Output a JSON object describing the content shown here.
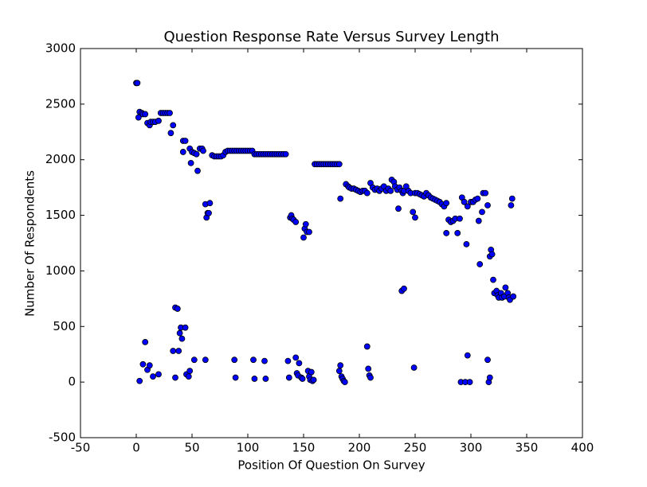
{
  "chart_data": {
    "type": "scatter",
    "title": "Question Response Rate Versus Survey Length",
    "x_label": "Position Of Question On Survey",
    "y_label": "Number Of Respondents",
    "color": "#0000ff",
    "xlim": [
      -50,
      400
    ],
    "xticks": [
      -50,
      0,
      50,
      100,
      150,
      200,
      250,
      300,
      350,
      400
    ],
    "ylim": [
      -500,
      3000
    ],
    "yticks": [
      -500,
      0,
      500,
      1000,
      1500,
      2000,
      2500,
      3000
    ],
    "x": [
      0,
      1,
      2,
      3,
      5,
      6,
      8,
      10,
      12,
      13,
      15,
      17,
      20,
      22,
      24,
      26,
      28,
      30,
      31,
      33,
      42,
      44,
      42,
      48,
      50,
      49,
      52,
      54,
      55,
      57,
      59,
      60,
      62,
      63,
      64,
      65,
      66,
      68,
      70,
      72,
      74,
      76,
      78,
      80,
      82,
      84,
      86,
      88,
      90,
      92,
      94,
      96,
      98,
      100,
      102,
      104,
      106,
      108,
      110,
      112,
      114,
      116,
      118,
      120,
      122,
      124,
      126,
      128,
      130,
      132,
      134,
      138,
      139,
      140,
      141,
      143,
      150,
      151,
      152,
      153,
      155,
      160,
      162,
      164,
      166,
      168,
      170,
      172,
      174,
      176,
      178,
      180,
      182,
      183,
      188,
      190,
      191,
      193,
      195,
      197,
      199,
      201,
      203,
      205,
      207,
      210,
      212,
      214,
      216,
      218,
      220,
      222,
      224,
      226,
      228,
      229,
      231,
      232,
      234,
      235,
      236,
      238,
      239,
      240,
      242,
      244,
      246,
      248,
      250,
      250,
      252,
      254,
      256,
      258,
      260,
      262,
      264,
      266,
      268,
      270,
      272,
      274,
      276,
      278,
      278,
      280,
      282,
      284,
      286,
      288,
      290,
      292,
      294,
      296,
      297,
      300,
      302,
      304,
      306,
      307,
      308,
      310,
      311,
      313,
      315,
      317,
      318,
      319,
      320,
      321,
      323,
      324,
      325,
      327,
      328,
      330,
      331,
      333,
      334,
      335,
      336,
      337,
      338,
      3,
      6,
      8,
      10,
      12,
      15,
      20,
      33,
      35,
      35,
      37,
      38,
      39,
      40,
      41,
      44,
      45,
      47,
      48,
      52,
      62,
      88,
      89,
      105,
      106,
      115,
      116,
      136,
      137,
      143,
      144,
      145,
      146,
      148,
      149,
      154,
      155,
      156,
      157,
      158,
      159,
      182,
      183,
      184,
      185,
      186,
      187,
      207,
      208,
      209,
      210,
      238,
      240,
      249,
      291,
      295,
      297,
      299,
      315,
      316,
      317
    ],
    "values": [
      2690,
      2690,
      2380,
      2430,
      2420,
      2410,
      2410,
      2330,
      2310,
      2340,
      2340,
      2340,
      2350,
      2420,
      2420,
      2420,
      2420,
      2420,
      2240,
      2310,
      2170,
      2170,
      2070,
      2100,
      2070,
      1970,
      2060,
      2050,
      1900,
      2100,
      2100,
      2080,
      1600,
      1480,
      1520,
      1520,
      1610,
      2040,
      2030,
      2030,
      2030,
      2030,
      2040,
      2070,
      2080,
      2080,
      2080,
      2080,
      2080,
      2080,
      2080,
      2080,
      2080,
      2080,
      2080,
      2080,
      2050,
      2050,
      2050,
      2050,
      2050,
      2050,
      2050,
      2050,
      2050,
      2050,
      2050,
      2050,
      2050,
      2050,
      2050,
      1480,
      1500,
      1470,
      1460,
      1440,
      1300,
      1380,
      1420,
      1350,
      1350,
      1960,
      1960,
      1960,
      1960,
      1960,
      1960,
      1960,
      1960,
      1960,
      1960,
      1960,
      1960,
      1650,
      1780,
      1760,
      1750,
      1740,
      1740,
      1730,
      1720,
      1710,
      1720,
      1720,
      1700,
      1790,
      1750,
      1730,
      1740,
      1720,
      1740,
      1760,
      1720,
      1740,
      1720,
      1820,
      1800,
      1760,
      1730,
      1560,
      1750,
      1720,
      1700,
      1720,
      1760,
      1720,
      1700,
      1530,
      1480,
      1700,
      1700,
      1690,
      1680,
      1670,
      1700,
      1680,
      1660,
      1650,
      1640,
      1630,
      1620,
      1600,
      1580,
      1340,
      1610,
      1460,
      1440,
      1450,
      1470,
      1340,
      1470,
      1660,
      1620,
      1240,
      1580,
      1620,
      1620,
      1640,
      1650,
      1450,
      1060,
      1530,
      1700,
      1700,
      1590,
      1130,
      1190,
      1150,
      920,
      800,
      820,
      780,
      760,
      800,
      760,
      770,
      850,
      800,
      760,
      740,
      1590,
      1650,
      770,
      10,
      160,
      360,
      110,
      150,
      50,
      70,
      280,
      40,
      670,
      660,
      280,
      440,
      490,
      390,
      490,
      70,
      50,
      100,
      200,
      200,
      200,
      40,
      200,
      30,
      190,
      30,
      190,
      40,
      220,
      80,
      60,
      170,
      40,
      30,
      100,
      50,
      20,
      90,
      10,
      20,
      100,
      150,
      50,
      30,
      10,
      0,
      320,
      120,
      60,
      40,
      820,
      840,
      130,
      0,
      0,
      240,
      0,
      200,
      0,
      40
    ]
  }
}
